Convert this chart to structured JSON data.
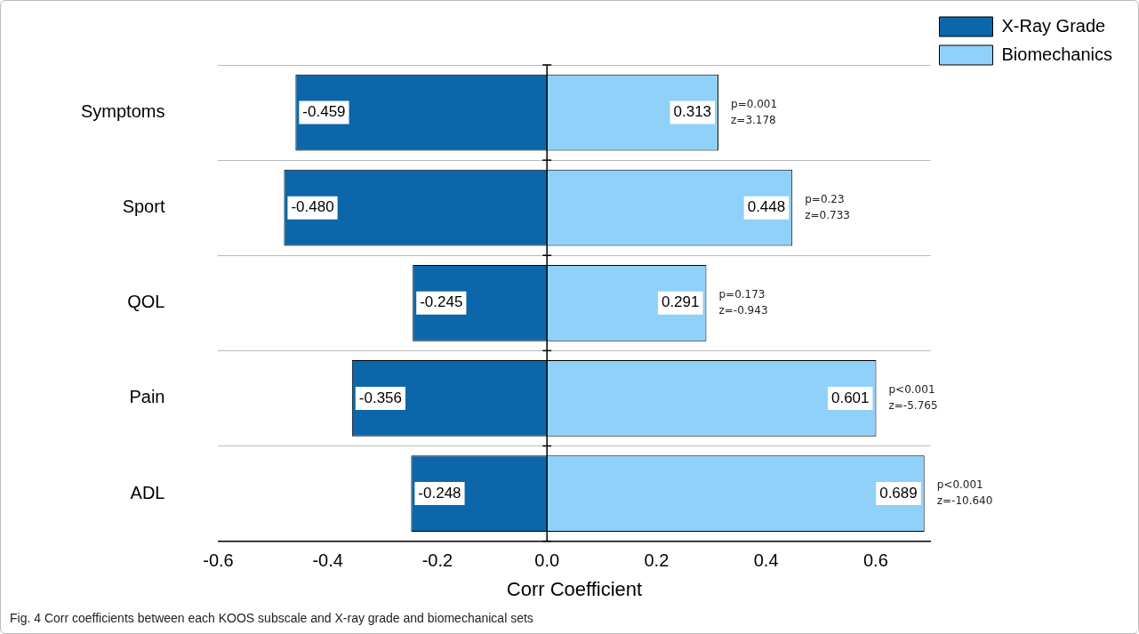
{
  "chart_data": {
    "type": "bar",
    "orientation": "horizontal",
    "xlabel": "Corr Coefficient",
    "categories": [
      "Symptoms",
      "Sport",
      "QOL",
      "Pain",
      "ADL"
    ],
    "series": [
      {
        "name": "X-Ray Grade",
        "color": "#0b67a9",
        "values": [
          -0.459,
          -0.48,
          -0.245,
          -0.356,
          -0.248
        ],
        "value_labels": [
          "-0.459",
          "-0.480",
          "-0.245",
          "-0.356",
          "-0.248"
        ]
      },
      {
        "name": "Biomechanics",
        "color": "#8fd1f8",
        "values": [
          0.313,
          0.448,
          0.291,
          0.601,
          0.689
        ],
        "value_labels": [
          "0.313",
          "0.448",
          "0.291",
          "0.601",
          "0.689"
        ]
      }
    ],
    "stacked": true,
    "xlim": [
      -0.6,
      0.7
    ],
    "xticks": [
      -0.6,
      -0.4,
      -0.2,
      {
        "value": 0,
        "label": "0.0"
      },
      0.2,
      0.4,
      0.6
    ],
    "grid": "y",
    "legend": "top right",
    "annotations": [
      {
        "text": "p=0.001",
        "x": 0.313,
        "y": "Symptoms"
      },
      {
        "text": "z=3.178",
        "x": 0.313,
        "y": "Symptoms"
      },
      {
        "text": "p=0.23",
        "x": 0.448,
        "y": "Sport"
      },
      {
        "text": "z=0.733",
        "x": 0.448,
        "y": "Sport"
      },
      {
        "text": "p=0.173",
        "x": 0.291,
        "y": "QOL"
      },
      {
        "text": "z=-0.943",
        "x": 0.291,
        "y": "QOL"
      },
      {
        "text": "p<0.001",
        "x": 0.601,
        "y": "Pain"
      },
      {
        "text": "z=-5.765",
        "x": 0.601,
        "y": "Pain"
      },
      {
        "text": "p<0.001",
        "x": 0.689,
        "y": "ADL"
      },
      {
        "text": "z=-10.640",
        "x": 0.689,
        "y": "ADL"
      },
      "Fig. 4 Corr coefficients between each KOOS subscale and X-ray grade and biomechanical sets"
    ]
  }
}
